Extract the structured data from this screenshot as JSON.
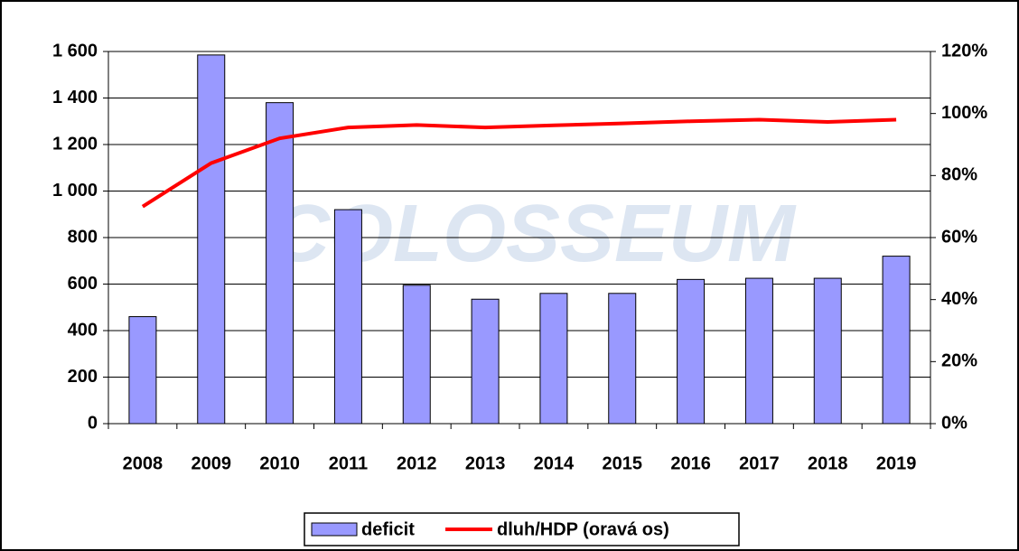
{
  "chart_data": {
    "type": "bar_line",
    "watermark": "COLOSSEUM",
    "categories": [
      "2008",
      "2009",
      "2010",
      "2011",
      "2012",
      "2013",
      "2014",
      "2015",
      "2016",
      "2017",
      "2018",
      "2019"
    ],
    "series": [
      {
        "name": "deficit",
        "color": "#9999ff",
        "type": "bar",
        "values": [
          460,
          1585,
          1380,
          920,
          595,
          535,
          560,
          560,
          620,
          625,
          625,
          720
        ]
      },
      {
        "name": "dluh/HDP (oravá os)",
        "color": "#ff0000",
        "type": "line",
        "axis": "y2",
        "values": [
          70,
          84,
          92,
          95.5,
          96.3,
          95.5,
          96.2,
          96.8,
          97.5,
          98,
          97.3,
          98
        ]
      }
    ],
    "ylim": [
      0,
      1600
    ],
    "yticks": [
      0,
      200,
      400,
      600,
      800,
      {
        "value": 1000,
        "label": "1 000"
      },
      {
        "value": 1200,
        "label": "1 200"
      },
      {
        "value": 1400,
        "label": "1 400"
      },
      {
        "value": 1600,
        "label": "1 600"
      }
    ],
    "y2lim": [
      0,
      120
    ],
    "y2ticks": [
      {
        "value": 0,
        "label": "0%"
      },
      {
        "value": 20,
        "label": "20%"
      },
      {
        "value": 40,
        "label": "40%"
      },
      {
        "value": 60,
        "label": "60%"
      },
      {
        "value": 80,
        "label": "80%"
      },
      {
        "value": 100,
        "label": "100%"
      },
      {
        "value": 120,
        "label": "120%"
      }
    ],
    "grid": true,
    "legend": "bottom"
  }
}
